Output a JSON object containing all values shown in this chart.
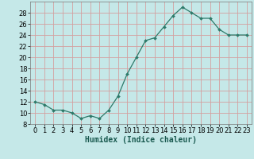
{
  "x": [
    0,
    1,
    2,
    3,
    4,
    5,
    6,
    7,
    8,
    9,
    10,
    11,
    12,
    13,
    14,
    15,
    16,
    17,
    18,
    19,
    20,
    21,
    22,
    23
  ],
  "y": [
    12,
    11.5,
    10.5,
    10.5,
    10,
    9,
    9.5,
    9,
    10.5,
    13,
    17,
    20,
    23,
    23.5,
    25.5,
    27.5,
    29,
    28,
    27,
    27,
    25,
    24,
    24,
    24
  ],
  "line_color": "#2d7a6a",
  "marker_color": "#2d7a6a",
  "bg_color": "#c5e8e8",
  "grid_color": "#d4a0a0",
  "xlabel": "Humidex (Indice chaleur)",
  "xlabel_fontsize": 7,
  "tick_fontsize": 6,
  "ylim": [
    8,
    30
  ],
  "yticks": [
    8,
    10,
    12,
    14,
    16,
    18,
    20,
    22,
    24,
    26,
    28
  ],
  "xlim": [
    -0.5,
    23.5
  ],
  "xticks": [
    0,
    1,
    2,
    3,
    4,
    5,
    6,
    7,
    8,
    9,
    10,
    11,
    12,
    13,
    14,
    15,
    16,
    17,
    18,
    19,
    20,
    21,
    22,
    23
  ]
}
